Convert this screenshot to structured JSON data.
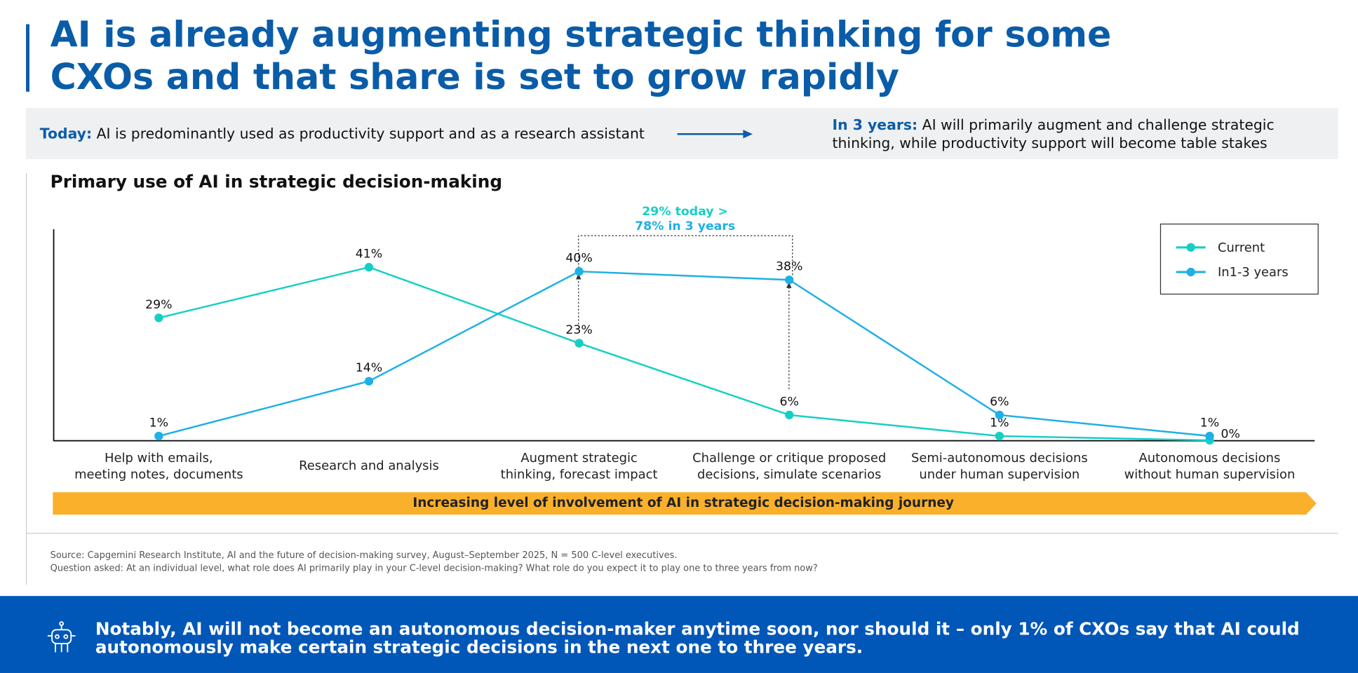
{
  "header": {
    "title": "AI is already augmenting strategic thinking for some CXOs and that share is set to grow rapidly"
  },
  "banner": {
    "today_label": "Today:",
    "today_text": "AI is predominantly used as productivity support and as a research assistant",
    "future_label": "In 3 years:",
    "future_text": "AI will primarily augment and challenge strategic thinking, while productivity support will become table stakes"
  },
  "chart_data": {
    "type": "line",
    "title": "Primary use of AI in strategic decision-making",
    "categories": [
      "Help with emails,\nmeeting notes, documents",
      "Research and analysis",
      "Augment strategic\nthinking, forecast impact",
      "Challenge or critique proposed\ndecisions, simulate scenarios",
      "Semi-autonomous decisions\nunder human supervision",
      "Autonomous decisions\nwithout human supervision"
    ],
    "series": [
      {
        "name": "Current",
        "color": "#16cfc4",
        "values": [
          29,
          41,
          23,
          6,
          1,
          0
        ],
        "value_labels": [
          "29%",
          "41%",
          "23%",
          "6%",
          "1%",
          "0%"
        ]
      },
      {
        "name": "In1-3 years",
        "color": "#1eb0e6",
        "values": [
          1,
          14,
          40,
          38,
          6,
          1
        ],
        "value_labels": [
          "1%",
          "14%",
          "40%",
          "38%",
          "6%",
          "1%"
        ]
      }
    ],
    "ylim": [
      0,
      50
    ],
    "legend": "upper right",
    "annotations": [
      "29% today >",
      "78% in 3 years"
    ],
    "axis_band": "Increasing level of involvement of AI in strategic decision-making journey"
  },
  "source": [
    "Source: Capgemini Research Institute, AI and the future of decision-making survey, August–September 2025, N = 500 C-level executives.",
    "Question asked: At an individual level, what role does AI primarily play in your C-level decision-making? What role do you expect it to play one to three years from now?"
  ],
  "footer": {
    "text": "Notably, AI will not become an autonomous decision-maker anytime soon, nor should it – only 1% of CXOs say that AI could autonomously make certain strategic decisions in the next one to three years."
  }
}
